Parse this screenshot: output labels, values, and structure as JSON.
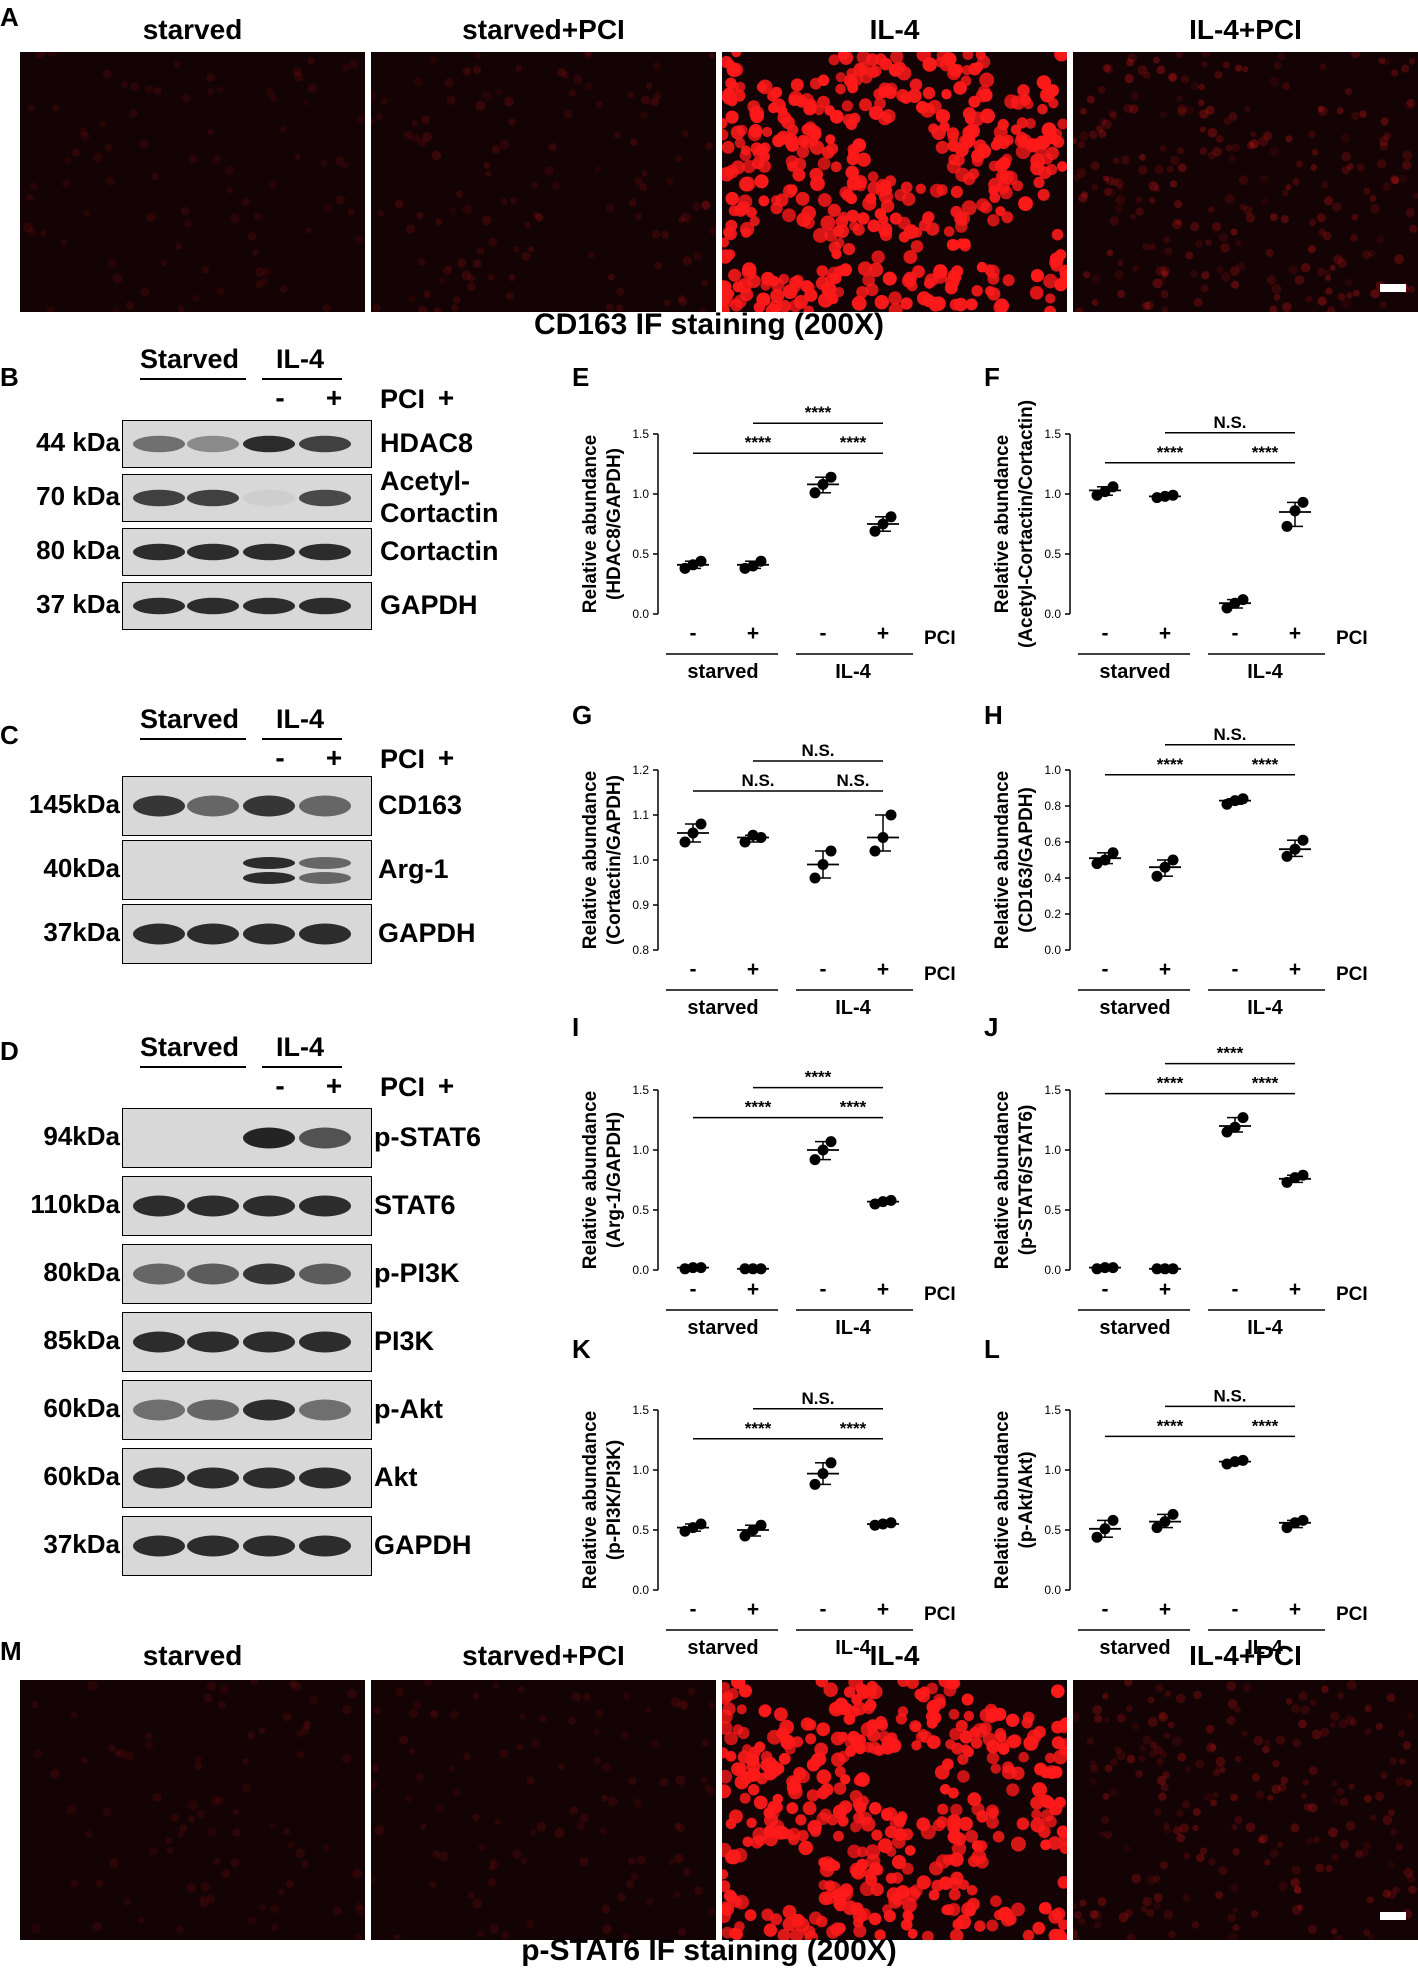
{
  "panels": {
    "A": "A",
    "B": "B",
    "C": "C",
    "D": "D",
    "E": "E",
    "F": "F",
    "G": "G",
    "H": "H",
    "I": "I",
    "J": "J",
    "K": "K",
    "L": "L",
    "M": "M"
  },
  "if_top": {
    "titles": [
      "starved",
      "starved+PCI",
      "IL-4",
      "IL-4+PCI"
    ],
    "caption": "CD163 IF staining (200X)",
    "intensity": [
      0.05,
      0.12,
      0.95,
      0.35
    ]
  },
  "if_bottom": {
    "titles": [
      "starved",
      "starved+PCI",
      "IL-4",
      "IL-4+PCI"
    ],
    "caption": "p-STAT6 IF staining (200X)",
    "intensity": [
      0.05,
      0.08,
      0.9,
      0.3
    ]
  },
  "blots": {
    "group_labels": [
      "Starved",
      "IL-4"
    ],
    "signs": [
      "-",
      "+",
      "-",
      "+"
    ],
    "treatment": "PCI",
    "B": {
      "rows": [
        {
          "mw": "44 kDa",
          "protein": "HDAC8"
        },
        {
          "mw": "70 kDa",
          "protein": "Acetyl-\nCortactin"
        },
        {
          "mw": "80 kDa",
          "protein": "Cortactin"
        },
        {
          "mw": "37 kDa",
          "protein": "GAPDH"
        }
      ]
    },
    "C": {
      "rows": [
        {
          "mw": "145kDa",
          "protein": "CD163"
        },
        {
          "mw": "40kDa",
          "protein": "Arg-1"
        },
        {
          "mw": "37kDa",
          "protein": "GAPDH"
        }
      ]
    },
    "D": {
      "rows": [
        {
          "mw": "94kDa",
          "protein": "p-STAT6"
        },
        {
          "mw": "110kDa",
          "protein": "STAT6"
        },
        {
          "mw": "80kDa",
          "protein": "p-PI3K"
        },
        {
          "mw": "85kDa",
          "protein": "PI3K"
        },
        {
          "mw": "60kDa",
          "protein": "p-Akt"
        },
        {
          "mw": "60kDa",
          "protein": "Akt"
        },
        {
          "mw": "37kDa",
          "protein": "GAPDH"
        }
      ]
    }
  },
  "chart_data": [
    {
      "id": "E",
      "type": "scatter",
      "ylabel": "Relative abundance\n(HDAC8/GAPDH)",
      "ylim": [
        0,
        1.5
      ],
      "yticks": [
        "0.0",
        "0.5",
        "1.0",
        "1.5"
      ],
      "signs": [
        "-",
        "+",
        "-",
        "+"
      ],
      "treatment": "PCI",
      "groups": [
        "starved",
        "IL-4"
      ],
      "points": [
        [
          0.38,
          0.44,
          0.41
        ],
        [
          0.38,
          0.44,
          0.4
        ],
        [
          1.01,
          1.14,
          1.08
        ],
        [
          0.69,
          0.81,
          0.75
        ]
      ],
      "means": [
        0.41,
        0.41,
        1.08,
        0.75
      ],
      "significance": [
        {
          "from": 0,
          "to": 2,
          "label": "****",
          "level": 1
        },
        {
          "from": 2,
          "to": 3,
          "label": "****",
          "level": 1
        },
        {
          "from": 1,
          "to": 3,
          "label": "****",
          "level": 2
        }
      ]
    },
    {
      "id": "F",
      "type": "scatter",
      "ylabel": "Relative abundance\n(Acetyl-Cortactin/Cortactin)",
      "ylim": [
        0,
        1.5
      ],
      "yticks": [
        "0.0",
        "0.5",
        "1.0",
        "1.5"
      ],
      "signs": [
        "-",
        "+",
        "-",
        "+"
      ],
      "treatment": "PCI",
      "groups": [
        "starved",
        "IL-4"
      ],
      "points": [
        [
          0.99,
          1.06,
          1.02
        ],
        [
          0.97,
          0.99,
          0.98
        ],
        [
          0.05,
          0.12,
          0.09
        ],
        [
          0.73,
          0.93,
          0.86
        ]
      ],
      "means": [
        1.03,
        0.98,
        0.09,
        0.85
      ],
      "significance": [
        {
          "from": 0,
          "to": 2,
          "label": "****",
          "level": 1
        },
        {
          "from": 2,
          "to": 3,
          "label": "****",
          "level": 1
        },
        {
          "from": 1,
          "to": 3,
          "label": "N.S.",
          "level": 2
        }
      ]
    },
    {
      "id": "G",
      "type": "scatter",
      "ylabel": "Relative abundance\n(Cortactin/GAPDH)",
      "ylim": [
        0.8,
        1.2
      ],
      "yticks": [
        "0.8",
        "0.9",
        "1.0",
        "1.1",
        "1.2"
      ],
      "signs": [
        "-",
        "+",
        "-",
        "+"
      ],
      "treatment": "PCI",
      "groups": [
        "starved",
        "IL-4"
      ],
      "points": [
        [
          1.04,
          1.08,
          1.06
        ],
        [
          1.04,
          1.05,
          1.055
        ],
        [
          0.96,
          1.02,
          0.99
        ],
        [
          1.02,
          1.1,
          1.05
        ]
      ],
      "means": [
        1.06,
        1.05,
        0.99,
        1.05
      ],
      "significance": [
        {
          "from": 0,
          "to": 2,
          "label": "N.S.",
          "level": 1
        },
        {
          "from": 2,
          "to": 3,
          "label": "N.S.",
          "level": 1
        },
        {
          "from": 1,
          "to": 3,
          "label": "N.S.",
          "level": 2
        }
      ]
    },
    {
      "id": "H",
      "type": "scatter",
      "ylabel": "Relative abundance\n(CD163/GAPDH)",
      "ylim": [
        0,
        1.0
      ],
      "yticks": [
        "0.0",
        "0.2",
        "0.4",
        "0.6",
        "0.8",
        "1.0"
      ],
      "signs": [
        "-",
        "+",
        "-",
        "+"
      ],
      "treatment": "PCI",
      "groups": [
        "starved",
        "IL-4"
      ],
      "points": [
        [
          0.48,
          0.54,
          0.5
        ],
        [
          0.41,
          0.5,
          0.46
        ],
        [
          0.81,
          0.84,
          0.83
        ],
        [
          0.52,
          0.61,
          0.56
        ]
      ],
      "means": [
        0.51,
        0.46,
        0.83,
        0.56
      ],
      "significance": [
        {
          "from": 0,
          "to": 2,
          "label": "****",
          "level": 1
        },
        {
          "from": 2,
          "to": 3,
          "label": "****",
          "level": 1
        },
        {
          "from": 1,
          "to": 3,
          "label": "N.S.",
          "level": 2
        }
      ]
    },
    {
      "id": "I",
      "type": "scatter",
      "ylabel": "Relative abundance\n(Arg-1/GAPDH)",
      "ylim": [
        0,
        1.5
      ],
      "yticks": [
        "0.0",
        "0.5",
        "1.0",
        "1.5"
      ],
      "signs": [
        "-",
        "+",
        "-",
        "+"
      ],
      "treatment": "PCI",
      "groups": [
        "starved",
        "IL-4"
      ],
      "points": [
        [
          0.01,
          0.02,
          0.02
        ],
        [
          0.01,
          0.01,
          0.01
        ],
        [
          0.92,
          1.07,
          1.0
        ],
        [
          0.55,
          0.58,
          0.57
        ]
      ],
      "means": [
        0.02,
        0.01,
        1.0,
        0.57
      ],
      "significance": [
        {
          "from": 0,
          "to": 2,
          "label": "****",
          "level": 1
        },
        {
          "from": 2,
          "to": 3,
          "label": "****",
          "level": 1
        },
        {
          "from": 1,
          "to": 3,
          "label": "****",
          "level": 2
        }
      ]
    },
    {
      "id": "J",
      "type": "scatter",
      "ylabel": "Relative abundance\n(p-STAT6/STAT6)",
      "ylim": [
        0,
        1.5
      ],
      "yticks": [
        "0.0",
        "0.5",
        "1.0",
        "1.5"
      ],
      "signs": [
        "-",
        "+",
        "-",
        "+"
      ],
      "treatment": "PCI",
      "groups": [
        "starved",
        "IL-4"
      ],
      "points": [
        [
          0.01,
          0.02,
          0.02
        ],
        [
          0.01,
          0.01,
          0.01
        ],
        [
          1.15,
          1.27,
          1.19
        ],
        [
          0.73,
          0.79,
          0.77
        ]
      ],
      "means": [
        0.02,
        0.01,
        1.2,
        0.76
      ],
      "significance": [
        {
          "from": 0,
          "to": 2,
          "label": "****",
          "level": 1
        },
        {
          "from": 2,
          "to": 3,
          "label": "****",
          "level": 1
        },
        {
          "from": 1,
          "to": 3,
          "label": "****",
          "level": 2
        }
      ]
    },
    {
      "id": "K",
      "type": "scatter",
      "ylabel": "Relative abundance\n(p-PI3K/PI3K)",
      "ylim": [
        0,
        1.5
      ],
      "yticks": [
        "0.0",
        "0.5",
        "1.0",
        "1.5"
      ],
      "signs": [
        "-",
        "+",
        "-",
        "+"
      ],
      "treatment": "PCI",
      "groups": [
        "starved",
        "IL-4"
      ],
      "points": [
        [
          0.49,
          0.55,
          0.52
        ],
        [
          0.45,
          0.54,
          0.5
        ],
        [
          0.88,
          1.06,
          0.97
        ],
        [
          0.54,
          0.56,
          0.55
        ]
      ],
      "means": [
        0.52,
        0.5,
        0.97,
        0.55
      ],
      "significance": [
        {
          "from": 0,
          "to": 2,
          "label": "****",
          "level": 1
        },
        {
          "from": 2,
          "to": 3,
          "label": "****",
          "level": 1
        },
        {
          "from": 1,
          "to": 3,
          "label": "N.S.",
          "level": 2
        }
      ]
    },
    {
      "id": "L",
      "type": "scatter",
      "ylabel": "Relative abundance\n(p-Akt/Akt)",
      "ylim": [
        0,
        1.5
      ],
      "yticks": [
        "0.0",
        "0.5",
        "1.0",
        "1.5"
      ],
      "signs": [
        "-",
        "+",
        "-",
        "+"
      ],
      "treatment": "PCI",
      "groups": [
        "starved",
        "IL-4"
      ],
      "points": [
        [
          0.44,
          0.58,
          0.51
        ],
        [
          0.52,
          0.63,
          0.57
        ],
        [
          1.05,
          1.08,
          1.07
        ],
        [
          0.52,
          0.58,
          0.56
        ]
      ],
      "means": [
        0.51,
        0.57,
        1.07,
        0.56
      ],
      "significance": [
        {
          "from": 0,
          "to": 2,
          "label": "****",
          "level": 1
        },
        {
          "from": 2,
          "to": 3,
          "label": "****",
          "level": 1
        },
        {
          "from": 1,
          "to": 3,
          "label": "N.S.",
          "level": 2
        }
      ]
    }
  ],
  "colors": {
    "fluorescence": "#ff1a1a",
    "if_background": "#140305",
    "blot_bg": "#d8d8d8",
    "band": "#1a1a1a"
  }
}
